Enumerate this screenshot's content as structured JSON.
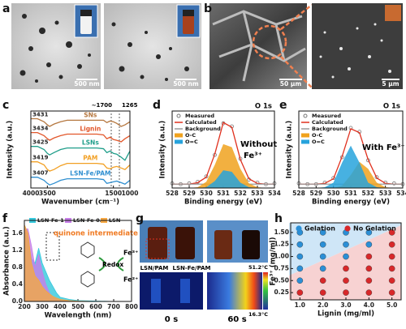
{
  "panel_labels": [
    "a",
    "b",
    "c",
    "d",
    "e",
    "f",
    "g",
    "h"
  ],
  "scale_bars": [
    "500 nm",
    "500 nm",
    "50 μm",
    "5 μm"
  ],
  "panel_g": {
    "samples": [
      "LSN/PAM",
      "LSN-Fe/PAM"
    ],
    "times": [
      "0 s",
      "60 s"
    ],
    "temperatures": [
      "51.2°C",
      "16.3°C"
    ]
  },
  "chart_data": [
    {
      "type": "line",
      "xlabel": "Wavenumber (cm⁻¹)",
      "ylabel": "Intensity (a.u.)",
      "xlim": [
        4000,
        1000
      ],
      "xticks": [
        4000,
        3500,
        1500,
        1000
      ],
      "ylim": [
        0,
        100
      ],
      "x": [
        4000,
        3800,
        3600,
        3500,
        3431,
        3300,
        3100,
        2900,
        2000,
        1800,
        1700,
        1600,
        1500,
        1400,
        1265,
        1150,
        1000
      ],
      "series": [
        {
          "name": "SNs",
          "color": "#b5773f",
          "values": [
            90,
            90,
            86,
            82,
            80,
            83,
            86,
            88,
            88,
            88,
            85,
            87,
            86,
            84,
            80,
            82,
            86
          ]
        },
        {
          "name": "Lignin",
          "color": "#e2572b",
          "values": [
            72,
            72,
            68,
            64,
            62,
            65,
            68,
            70,
            70,
            69,
            64,
            66,
            63,
            62,
            60,
            64,
            68
          ]
        },
        {
          "name": "LSNs",
          "color": "#1f9e8a",
          "values": [
            54,
            54,
            50,
            45,
            43,
            46,
            50,
            52,
            52,
            51,
            46,
            48,
            45,
            44,
            40,
            36,
            48
          ]
        },
        {
          "name": "PAM",
          "color": "#f2a024",
          "values": [
            34,
            34,
            30,
            24,
            22,
            24,
            29,
            32,
            32,
            31,
            26,
            25,
            27,
            28,
            26,
            24,
            30
          ]
        },
        {
          "name": "LSN-Fe/PAM",
          "color": "#2f8fd0",
          "values": [
            14,
            14,
            10,
            6,
            4,
            6,
            10,
            12,
            12,
            11,
            6,
            7,
            8,
            9,
            7,
            5,
            10
          ]
        }
      ],
      "peaks": [
        3431,
        3434,
        3425,
        3419,
        3407
      ],
      "annotations": [
        "~1700",
        "1265"
      ]
    },
    {
      "type": "line",
      "title": "O 1s",
      "xlabel": "Binding energy (eV)",
      "ylabel": "Intensity (a.u.)",
      "xlim": [
        528,
        534
      ],
      "xticks": [
        528,
        529,
        530,
        531,
        532,
        533,
        534
      ],
      "ylim": [
        0,
        100
      ],
      "legend": "upper left",
      "x": [
        528,
        528.5,
        529,
        529.5,
        530,
        530.5,
        531,
        531.5,
        532,
        532.5,
        533,
        533.5,
        534
      ],
      "series": [
        {
          "name": "Measured",
          "color": "#777777",
          "marker": "circle",
          "values": [
            6,
            5,
            6,
            8,
            15,
            43,
            84,
            80,
            38,
            11,
            7,
            5,
            6
          ]
        },
        {
          "name": "Calculated",
          "color": "#e0301e",
          "values": [
            5,
            5,
            5,
            7,
            14,
            44,
            85,
            79,
            37,
            12,
            6,
            5,
            5
          ]
        },
        {
          "name": "Background",
          "color": "#9a9a9a",
          "values": [
            5,
            5,
            5,
            5,
            5,
            5,
            5,
            5,
            5,
            5,
            5,
            5,
            5
          ]
        },
        {
          "name": "O-C",
          "color": "#f0a21e",
          "fill": true,
          "values": [
            0,
            0,
            0,
            1,
            8,
            30,
            57,
            53,
            25,
            6,
            1,
            0,
            0
          ]
        },
        {
          "name": "O=C",
          "color": "#27a3dc",
          "fill": true,
          "values": [
            0,
            0,
            0,
            0,
            1,
            9,
            23,
            21,
            7,
            1,
            0,
            0,
            0
          ]
        }
      ],
      "annotations": [
        "Without",
        "Fe³⁺"
      ]
    },
    {
      "type": "line",
      "title": "O 1s",
      "xlabel": "Binding energy (eV)",
      "ylabel": "Intensity (a.u.)",
      "xlim": [
        528,
        534
      ],
      "xticks": [
        528,
        529,
        530,
        531,
        532,
        533,
        534
      ],
      "ylim": [
        0,
        100
      ],
      "legend": "upper left",
      "x": [
        528,
        528.5,
        529,
        529.5,
        530,
        530.5,
        531,
        531.5,
        532,
        532.5,
        533,
        533.5,
        534
      ],
      "series": [
        {
          "name": "Measured",
          "color": "#777777",
          "marker": "circle",
          "values": [
            6,
            5,
            5,
            7,
            13,
            40,
            78,
            73,
            36,
            14,
            7,
            6,
            5
          ]
        },
        {
          "name": "Calculated",
          "color": "#e0301e",
          "values": [
            5,
            5,
            5,
            6,
            12,
            41,
            77,
            72,
            37,
            13,
            6,
            5,
            5
          ]
        },
        {
          "name": "Background",
          "color": "#9a9a9a",
          "values": [
            5,
            5,
            5,
            5,
            5,
            5,
            5,
            5,
            5,
            5,
            5,
            5,
            5
          ]
        },
        {
          "name": "O-C",
          "color": "#f0a21e",
          "fill": true,
          "values": [
            0,
            0,
            0,
            0,
            0,
            3,
            17,
            34,
            25,
            7,
            1,
            0,
            0
          ]
        },
        {
          "name": "O=C",
          "color": "#27a3dc",
          "fill": true,
          "values": [
            0,
            0,
            0,
            1,
            7,
            33,
            55,
            33,
            7,
            1,
            0,
            0,
            0
          ]
        }
      ],
      "annotations": [
        "With Fe³⁺"
      ]
    },
    {
      "type": "area",
      "xlabel": "Wavelength (nm)",
      "ylabel": "Absorbance (a.u.)",
      "xlim": [
        200,
        800
      ],
      "xticks": [
        200,
        300,
        400,
        500,
        600,
        700,
        800
      ],
      "ylim": [
        0,
        1.9
      ],
      "yticks": [
        {
          "value": 0,
          "label": "0.0"
        },
        0.4,
        0.8,
        1.2,
        1.6
      ],
      "legend": "top",
      "x": [
        200,
        220,
        240,
        260,
        280,
        300,
        320,
        340,
        360,
        380,
        400,
        450,
        500,
        600,
        700,
        800
      ],
      "series": [
        {
          "name": "LSN-Fe-1",
          "color": "#35c8dc",
          "values": [
            1.6,
            1.5,
            1.0,
            0.9,
            1.25,
            0.9,
            0.7,
            0.5,
            0.35,
            0.2,
            0.1,
            0.05,
            0.02,
            0.01,
            0,
            0
          ]
        },
        {
          "name": "LSN-Fe-0.5",
          "color": "#c77ee8",
          "values": [
            1.7,
            1.7,
            1.3,
            0.8,
            1.1,
            0.7,
            0.4,
            0.2,
            0.1,
            0.05,
            0.02,
            0.01,
            0,
            0,
            0,
            0
          ]
        },
        {
          "name": "LSN",
          "color": "#f5a742",
          "values": [
            1.8,
            1.6,
            0.9,
            0.6,
            0.5,
            0.35,
            0.25,
            0.18,
            0.12,
            0.08,
            0.05,
            0.02,
            0.01,
            0,
            0,
            0
          ]
        }
      ],
      "annotations": [
        "quinone intermediate",
        "Redox",
        "Fe³⁺",
        "Fe²⁺"
      ]
    },
    {
      "type": "scatter",
      "xlabel": "Lignin (mg/ml)",
      "ylabel": "Fe³⁺ (mg/ml)",
      "xlim": [
        0.6,
        5.4
      ],
      "xticks": [
        {
          "value": 1,
          "label": "1.0"
        },
        {
          "value": 2,
          "label": "2.0"
        },
        {
          "value": 3,
          "label": "3.0"
        },
        {
          "value": 4,
          "label": "4.0"
        },
        {
          "value": 5,
          "label": "5.0"
        }
      ],
      "ylim": [
        0.1,
        1.7
      ],
      "yticks": [
        0.25,
        {
          "value": 0.5,
          "label": "0.50"
        },
        0.75,
        {
          "value": 1,
          "label": "1.00"
        },
        1.25,
        {
          "value": 1.5,
          "label": "1.50"
        }
      ],
      "legend": "top",
      "series": [
        {
          "name": "Gelation",
          "color": "#2b8fd6",
          "x": [
            1,
            1,
            1,
            1,
            1,
            2,
            2,
            2,
            2,
            3,
            3,
            3,
            4,
            4
          ],
          "values": [
            0.5,
            0.75,
            1,
            1.25,
            1.5,
            0.75,
            1,
            1.25,
            1.5,
            1,
            1.25,
            1.5,
            1.25,
            1.5
          ]
        },
        {
          "name": "No Gelation",
          "color": "#d8282a",
          "x": [
            1,
            2,
            2,
            3,
            3,
            3,
            4,
            4,
            4,
            4,
            5,
            5,
            5,
            5,
            5,
            5
          ],
          "values": [
            0.25,
            0.25,
            0.5,
            0.25,
            0.5,
            0.75,
            0.25,
            0.5,
            0.75,
            1,
            0.25,
            0.5,
            0.75,
            1,
            1.25,
            1.5
          ]
        }
      ]
    }
  ]
}
